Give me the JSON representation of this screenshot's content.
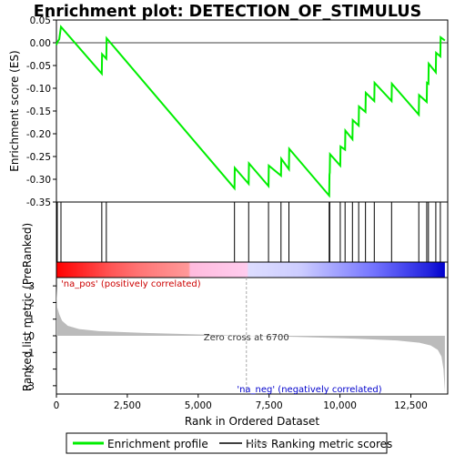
{
  "title": "Enrichment plot: DETECTION_OF_STIMULUS",
  "colors": {
    "es_line": "#00ee00",
    "hits": "#000000",
    "metric_fill": "#bbbbbb",
    "zero_cross_line": "#aaaaaa",
    "pos_label": "#cc0000",
    "neg_label": "#0000cc"
  },
  "chart_data": [
    {
      "type": "line",
      "name": "enrichment-profile",
      "ylabel": "Enrichment score (ES)",
      "ylim": [
        -0.35,
        0.05
      ],
      "yticks": [
        0.05,
        0.0,
        -0.05,
        -0.1,
        -0.15,
        -0.2,
        -0.25,
        -0.3,
        -0.35
      ],
      "ytick_labels": [
        "0.05",
        "0.00",
        "-0.05",
        "-0.10",
        "-0.15",
        "-0.20",
        "-0.25",
        "-0.30",
        "-0.35"
      ],
      "xlim": [
        0,
        13800
      ],
      "hits": [
        30,
        160,
        1600,
        1760,
        6280,
        6780,
        7480,
        7920,
        8200,
        9620,
        9640,
        10010,
        10180,
        10440,
        10660,
        10900,
        11210,
        11820,
        12780,
        13060,
        13120,
        13380,
        13540
      ],
      "es_points": [
        [
          0,
          -0.005
        ],
        [
          30,
          0.001
        ],
        [
          100,
          0.008
        ],
        [
          160,
          0.035
        ],
        [
          1600,
          -0.068
        ],
        [
          1610,
          -0.025
        ],
        [
          1760,
          -0.035
        ],
        [
          1770,
          0.01
        ],
        [
          6280,
          -0.32
        ],
        [
          6290,
          -0.275
        ],
        [
          6780,
          -0.31
        ],
        [
          6790,
          -0.265
        ],
        [
          7480,
          -0.315
        ],
        [
          7490,
          -0.27
        ],
        [
          7920,
          -0.292
        ],
        [
          7930,
          -0.255
        ],
        [
          8200,
          -0.278
        ],
        [
          8210,
          -0.233
        ],
        [
          9620,
          -0.336
        ],
        [
          9630,
          -0.29
        ],
        [
          9640,
          -0.285
        ],
        [
          9650,
          -0.245
        ],
        [
          10010,
          -0.27
        ],
        [
          10020,
          -0.228
        ],
        [
          10180,
          -0.235
        ],
        [
          10190,
          -0.193
        ],
        [
          10440,
          -0.212
        ],
        [
          10450,
          -0.17
        ],
        [
          10660,
          -0.182
        ],
        [
          10670,
          -0.14
        ],
        [
          10900,
          -0.152
        ],
        [
          10910,
          -0.11
        ],
        [
          11210,
          -0.128
        ],
        [
          11220,
          -0.088
        ],
        [
          11820,
          -0.128
        ],
        [
          11830,
          -0.09
        ],
        [
          12780,
          -0.158
        ],
        [
          12790,
          -0.115
        ],
        [
          13060,
          -0.13
        ],
        [
          13070,
          -0.088
        ],
        [
          13120,
          -0.09
        ],
        [
          13130,
          -0.046
        ],
        [
          13380,
          -0.065
        ],
        [
          13390,
          -0.022
        ],
        [
          13540,
          -0.03
        ],
        [
          13550,
          0.012
        ],
        [
          13700,
          0.005
        ]
      ]
    },
    {
      "type": "area",
      "name": "ranked-list-metric",
      "xlabel": "Rank in Ordered Dataset",
      "ylabel": "Ranked list metric (PreRanked)",
      "ylim": [
        -3.5,
        3.5
      ],
      "yticks": [
        3,
        2,
        1,
        0,
        -1,
        -2,
        -3
      ],
      "ytick_labels": [
        "3",
        "2",
        "1",
        "0",
        "-1",
        "-2",
        "-3"
      ],
      "xlim": [
        0,
        13800
      ],
      "xticks": [
        0,
        2500,
        5000,
        7500,
        10000,
        12500
      ],
      "xtick_labels": [
        "0",
        "2,500",
        "5,000",
        "7,500",
        "10,000",
        "12,500"
      ],
      "metric_points": [
        [
          0,
          2.9
        ],
        [
          30,
          1.7
        ],
        [
          100,
          1.3
        ],
        [
          200,
          0.9
        ],
        [
          400,
          0.6
        ],
        [
          800,
          0.4
        ],
        [
          1500,
          0.28
        ],
        [
          3000,
          0.18
        ],
        [
          5000,
          0.08
        ],
        [
          6700,
          0.0
        ],
        [
          8500,
          -0.07
        ],
        [
          10500,
          -0.17
        ],
        [
          12000,
          -0.28
        ],
        [
          12800,
          -0.42
        ],
        [
          13200,
          -0.58
        ],
        [
          13450,
          -0.85
        ],
        [
          13580,
          -1.25
        ],
        [
          13650,
          -2.0
        ],
        [
          13700,
          -3.4
        ]
      ],
      "zero_cross": 6700,
      "zero_cross_label": "Zero cross at 6700",
      "pos_label": "'na_pos' (positively correlated)",
      "neg_label": "'na_neg' (negatively correlated)"
    }
  ],
  "legend": {
    "items": [
      {
        "label": "Enrichment profile",
        "color": "#00ee00"
      },
      {
        "label": "Hits",
        "color": "#000000"
      },
      {
        "label": "Ranking metric scores",
        "color": "#bbbbbb"
      }
    ]
  }
}
